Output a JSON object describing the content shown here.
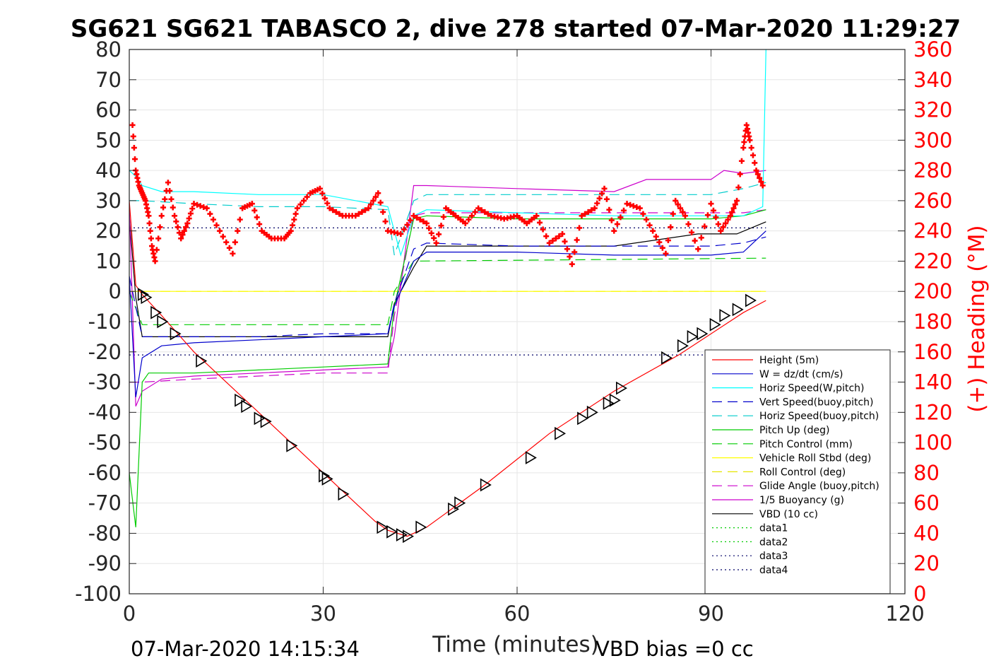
{
  "title": "SG621 SG621 TABASCO 2, dive 278 started 07-Mar-2020 11:29:27",
  "footer": {
    "timestamp": "07-Mar-2020 14:15:34",
    "vbd_bias": "VBD bias =0 cc"
  },
  "chart_data": {
    "type": "line",
    "xlabel": "Time (minutes)",
    "ylabel": "",
    "ylabel_right": "(+) Heading (°M)",
    "xlim": [
      0,
      120
    ],
    "ylim": [
      -100,
      80
    ],
    "ylim_right": [
      0,
      360
    ],
    "xticks": [
      "0",
      "30",
      "60",
      "90",
      "120"
    ],
    "yticks": [
      "80",
      "70",
      "60",
      "50",
      "40",
      "30",
      "20",
      "10",
      "0",
      "-10",
      "-20",
      "-30",
      "-40",
      "-50",
      "-60",
      "-70",
      "-80",
      "-90",
      "-100"
    ],
    "yticks_right": [
      "360",
      "340",
      "320",
      "300",
      "280",
      "260",
      "240",
      "220",
      "200",
      "180",
      "160",
      "140",
      "120",
      "100",
      "80",
      "60",
      "40",
      "20",
      "0"
    ],
    "grid": true,
    "legend_position": "lower-right",
    "colors": {
      "height": "#ff0000",
      "w": "#0000cc",
      "horiz_w": "#00ffff",
      "vert_buoy": "#0000cc",
      "horiz_buoy": "#00cccc",
      "pitch": "#00cc00",
      "pitch_ctl": "#00cc00",
      "roll": "#ffff00",
      "roll_ctl": "#e6e600",
      "glide": "#cc00cc",
      "buoyancy": "#cc00cc",
      "vbd": "#000000",
      "heading": "#ff0000"
    },
    "series": [
      {
        "name": "Height (5m)",
        "style": "solid",
        "color": "#ff0000",
        "x": [
          0,
          1,
          2,
          5,
          10,
          20,
          30,
          38,
          40,
          43,
          46,
          55,
          65,
          75,
          85,
          95,
          98.5
        ],
        "y": [
          30,
          2,
          -1,
          -8,
          -20,
          -40,
          -60,
          -76,
          -79,
          -81,
          -78,
          -64,
          -47,
          -33,
          -21,
          -7,
          -3
        ]
      },
      {
        "name": "W = dz/dt (cm/s)",
        "style": "solid",
        "color": "#0000cc",
        "x": [
          0,
          1,
          2,
          5,
          10,
          20,
          30,
          40,
          41,
          44,
          46,
          60,
          75,
          90,
          95,
          98.5
        ],
        "y": [
          5,
          -35,
          -22,
          -18,
          -17,
          -16,
          -15,
          -14,
          -5,
          10,
          13,
          13,
          12,
          12,
          13,
          20
        ]
      },
      {
        "name": "Horiz Speed(W,pitch)",
        "style": "solid",
        "color": "#00ffff",
        "x": [
          0,
          1,
          2,
          5,
          10,
          20,
          30,
          40,
          41,
          42,
          44,
          46,
          60,
          75,
          90,
          95,
          98,
          98.5
        ],
        "y": [
          40,
          38,
          35,
          33,
          33,
          32,
          32,
          28,
          20,
          12,
          25,
          27,
          26,
          25,
          25,
          25,
          28,
          80
        ]
      },
      {
        "name": "Vert Speed(buoy,pitch)",
        "style": "dashed",
        "color": "#0000cc",
        "x": [
          0,
          2,
          10,
          20,
          30,
          40,
          41,
          44,
          46,
          60,
          75,
          90,
          95,
          98.5
        ],
        "y": [
          5,
          -15,
          -15,
          -15,
          -14,
          -14,
          -4,
          14,
          16,
          15,
          15,
          15,
          16,
          18
        ]
      },
      {
        "name": "Horiz Speed(buoy,pitch)",
        "style": "dashed",
        "color": "#00cccc",
        "x": [
          0,
          2,
          10,
          20,
          30,
          40,
          41,
          44,
          46,
          60,
          75,
          90,
          95,
          98.5
        ],
        "y": [
          30,
          30,
          29,
          28,
          28,
          27,
          12,
          30,
          32,
          32,
          32,
          32,
          34,
          36
        ]
      },
      {
        "name": "Pitch Up (deg)",
        "style": "solid",
        "color": "#00cc00",
        "x": [
          0,
          1,
          2,
          3,
          10,
          20,
          30,
          40,
          41,
          44,
          46,
          60,
          75,
          90,
          95,
          98.5
        ],
        "y": [
          -60,
          -78,
          -30,
          -27,
          -27,
          -26,
          -25,
          -24,
          -5,
          24,
          25,
          24,
          24,
          24,
          25,
          27
        ]
      },
      {
        "name": "Pitch Control (mm)",
        "style": "dashed",
        "color": "#00cc00",
        "x": [
          0,
          2,
          40,
          41,
          44,
          98.5
        ],
        "y": [
          0,
          -11,
          -11,
          0,
          10,
          11
        ]
      },
      {
        "name": "Vehicle Roll Stbd (deg)",
        "style": "solid",
        "color": "#ffff00",
        "x": [
          0,
          2,
          5,
          10,
          20,
          30,
          40,
          45,
          60,
          75,
          90,
          95,
          98.5
        ],
        "y": [
          0,
          0,
          0,
          0,
          0,
          0,
          0,
          0,
          0,
          0,
          0,
          0,
          0
        ]
      },
      {
        "name": "Roll Control (deg)",
        "style": "dashed",
        "color": "#e6e600",
        "x": [
          0,
          2,
          40,
          45,
          98.5
        ],
        "y": [
          0,
          0,
          0,
          0,
          0
        ]
      },
      {
        "name": "Glide Angle (buoy,pitch)",
        "style": "dashed",
        "color": "#cc00cc",
        "x": [
          0,
          2,
          10,
          20,
          30,
          40,
          41,
          44,
          46,
          60,
          75,
          90,
          95,
          98.5
        ],
        "y": [
          -30,
          -30,
          -29,
          -28,
          -27,
          -27,
          -8,
          25,
          26,
          26,
          26,
          26,
          26,
          27
        ]
      },
      {
        "name": "1/5 Buoyancy (g)",
        "style": "solid",
        "color": "#cc00cc",
        "x": [
          0,
          1,
          2,
          5,
          10,
          20,
          30,
          40,
          41,
          44,
          46,
          60,
          75,
          80,
          90,
          92,
          95,
          98.5
        ],
        "y": [
          28,
          -38,
          -33,
          -29,
          -28,
          -27,
          -26,
          -25,
          -15,
          35,
          35,
          34,
          33,
          37,
          37,
          40,
          39,
          40
        ]
      },
      {
        "name": "VBD (10 cc)",
        "style": "solid",
        "color": "#000000",
        "x": [
          0,
          1,
          2,
          10,
          20,
          30,
          40,
          41,
          44,
          46,
          60,
          75,
          88,
          90,
          94,
          98.5
        ],
        "y": [
          25,
          -2,
          -15,
          -15,
          -15,
          -15,
          -15,
          -4,
          8,
          15,
          15,
          15,
          19,
          19,
          19,
          23
        ]
      },
      {
        "name": "data1",
        "style": "dotted",
        "color": "#00cc00",
        "x": [],
        "y": []
      },
      {
        "name": "data2",
        "style": "dotted",
        "color": "#00cc00",
        "x": [],
        "y": []
      },
      {
        "name": "data3",
        "style": "dotted",
        "color": "#000066",
        "x": [
          0,
          98.5
        ],
        "y": [
          21,
          21
        ]
      },
      {
        "name": "data4",
        "style": "dotted",
        "color": "#000066",
        "x": [
          0,
          98.5
        ],
        "y": [
          -21,
          -21
        ]
      }
    ],
    "heading": {
      "axis": "right",
      "marker": "+",
      "color": "#ff0000",
      "x": [
        0.5,
        1,
        1.5,
        2,
        2.5,
        3,
        3.5,
        4,
        5,
        6,
        7,
        8,
        9,
        10,
        12,
        14,
        16,
        17.5,
        19,
        20.5,
        22,
        24,
        25,
        26,
        28,
        29.5,
        31,
        33,
        35,
        37,
        38.5,
        40,
        42,
        44,
        46,
        47.5,
        49,
        50.5,
        52,
        54,
        56,
        58,
        60,
        61.5,
        63,
        65,
        67,
        68.5,
        70,
        72,
        73.5,
        75,
        77,
        79,
        81,
        83,
        84.5,
        86,
        88,
        90,
        91.5,
        93,
        94,
        95,
        95.5,
        96,
        97,
        98
      ],
      "y": [
        310,
        280,
        270,
        265,
        260,
        250,
        230,
        220,
        250,
        272,
        250,
        235,
        245,
        258,
        255,
        240,
        225,
        255,
        258,
        240,
        235,
        235,
        240,
        255,
        265,
        268,
        255,
        250,
        250,
        255,
        265,
        240,
        238,
        250,
        245,
        232,
        255,
        250,
        245,
        255,
        250,
        248,
        250,
        245,
        250,
        232,
        238,
        218,
        250,
        255,
        268,
        240,
        258,
        255,
        240,
        225,
        260,
        250,
        228,
        258,
        240,
        250,
        260,
        295,
        310,
        300,
        280,
        270
      ]
    },
    "markers": {
      "shape": "triangle",
      "color": "#000000",
      "x": [
        2,
        2.5,
        4,
        5,
        7,
        11,
        17,
        18,
        20,
        21,
        25,
        30,
        30.5,
        33,
        39,
        40.5,
        42,
        43,
        45,
        50,
        51,
        55,
        62,
        66.5,
        70,
        71.5,
        74,
        75,
        76,
        83,
        85.5,
        87,
        88.5,
        90.5,
        92,
        94,
        96
      ],
      "y": [
        -1,
        -2,
        -7,
        -10,
        -14,
        -23,
        -36,
        -38,
        -42,
        -43,
        -51,
        -61,
        -62,
        -67,
        -78,
        -79.5,
        -80.5,
        -81,
        -78,
        -72,
        -70,
        -64,
        -55,
        -47,
        -42,
        -40,
        -37,
        -36,
        -32,
        -22,
        -18,
        -15,
        -14,
        -11,
        -8,
        -6,
        -3
      ]
    }
  }
}
